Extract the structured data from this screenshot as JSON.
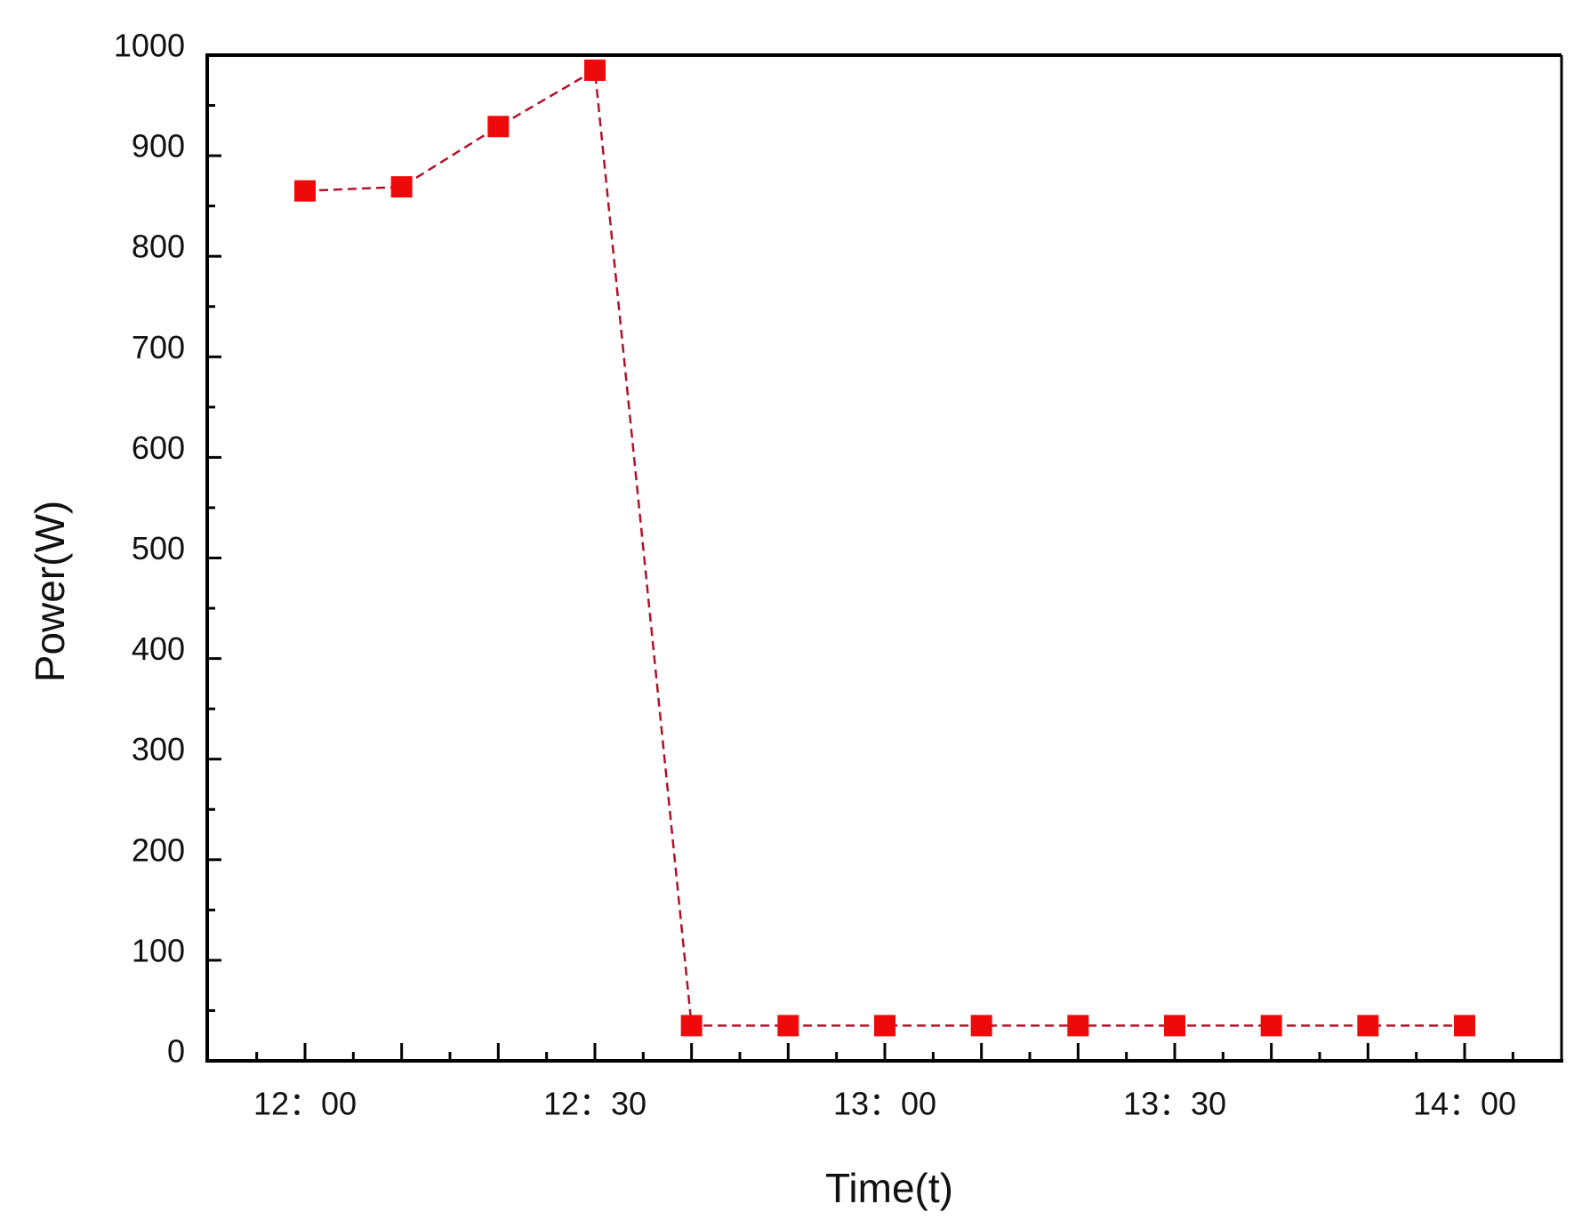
{
  "chart_data": {
    "type": "line",
    "title": "",
    "xlabel": "Time(t)",
    "ylabel": "Power(W)",
    "ylim": [
      0,
      1000
    ],
    "y_ticks": [
      0,
      100,
      200,
      300,
      400,
      500,
      600,
      700,
      800,
      900,
      1000
    ],
    "x_tick_labels": [
      "12：00",
      "12：30",
      "13：00",
      "13：30",
      "14：00"
    ],
    "x": [
      "12:00",
      "12:10",
      "12:20",
      "12:30",
      "12:40",
      "12:50",
      "13:00",
      "13:10",
      "13:20",
      "13:30",
      "13:40",
      "13:50",
      "14:00"
    ],
    "series": [
      {
        "name": "Power",
        "marker": "square",
        "line_style": "dashed",
        "values": [
          865,
          869,
          929,
          985,
          35,
          35,
          35,
          35,
          35,
          35,
          35,
          35,
          35
        ]
      }
    ],
    "grid": false,
    "legend": "none",
    "colors": {
      "marker": "#ee0a0a",
      "line": "#b0122a",
      "axis": "#000000"
    }
  }
}
